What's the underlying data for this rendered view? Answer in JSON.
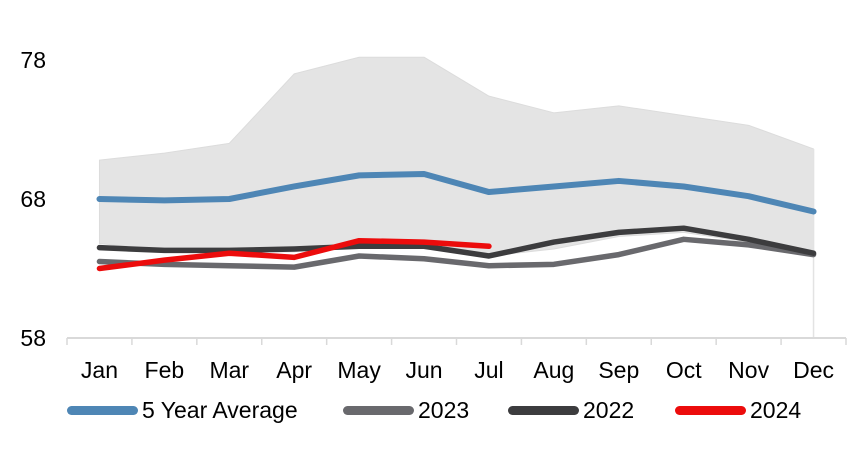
{
  "chart_data": {
    "type": "line",
    "title": "",
    "x_labels": [
      "Jan",
      "Feb",
      "Mar",
      "Apr",
      "May",
      "Jun",
      "Jul",
      "Aug",
      "Sep",
      "Oct",
      "Nov",
      "Dec"
    ],
    "y_axis": {
      "min": 58,
      "max": 79.5,
      "ticks": [
        78,
        68,
        58
      ]
    },
    "grid": "off",
    "legend_position": "bottom",
    "range_band": {
      "color": "#E4E4E4",
      "upper": [
        70.8,
        71.3,
        72.0,
        77.0,
        78.2,
        78.2,
        75.4,
        74.2,
        74.7,
        74.0,
        73.3,
        71.6
      ],
      "lower": [
        64.8,
        64.3,
        64.2,
        64.2,
        64.9,
        64.8,
        63.9,
        64.4,
        65.3,
        65.6,
        64.9,
        64.1
      ]
    },
    "series": [
      {
        "name": "5 Year Average",
        "color": "#4E86B5",
        "width": 6,
        "values": [
          68.0,
          67.9,
          68.0,
          68.9,
          69.7,
          69.8,
          68.5,
          68.9,
          69.3,
          68.9,
          68.2,
          67.1
        ]
      },
      {
        "name": "2023",
        "color": "#69696D",
        "width": 5.5,
        "values": [
          63.5,
          63.3,
          63.2,
          63.1,
          63.9,
          63.7,
          63.2,
          63.3,
          64.0,
          65.1,
          64.7,
          64.0
        ]
      },
      {
        "name": "2022",
        "color": "#3C3C3E",
        "width": 5.5,
        "values": [
          64.5,
          64.3,
          64.3,
          64.4,
          64.6,
          64.6,
          63.9,
          64.9,
          65.6,
          65.9,
          65.1,
          64.1
        ]
      },
      {
        "name": "2024",
        "color": "#EC0C0C",
        "width": 5.5,
        "values": [
          63.0,
          63.6,
          64.1,
          63.8,
          65.0,
          64.9,
          64.6,
          null,
          null,
          null,
          null,
          null
        ]
      }
    ],
    "colors": {
      "axis": "#D9D9D9",
      "band_edge": "#DCDCDC",
      "text": "#000000",
      "background": "#FFFFFF"
    }
  },
  "legend": {
    "items": [
      {
        "label": "5 Year Average",
        "color": "#4E86B5"
      },
      {
        "label": "2023",
        "color": "#69696D"
      },
      {
        "label": "2022",
        "color": "#3C3C3E"
      },
      {
        "label": "2024",
        "color": "#EC0C0C"
      }
    ]
  }
}
